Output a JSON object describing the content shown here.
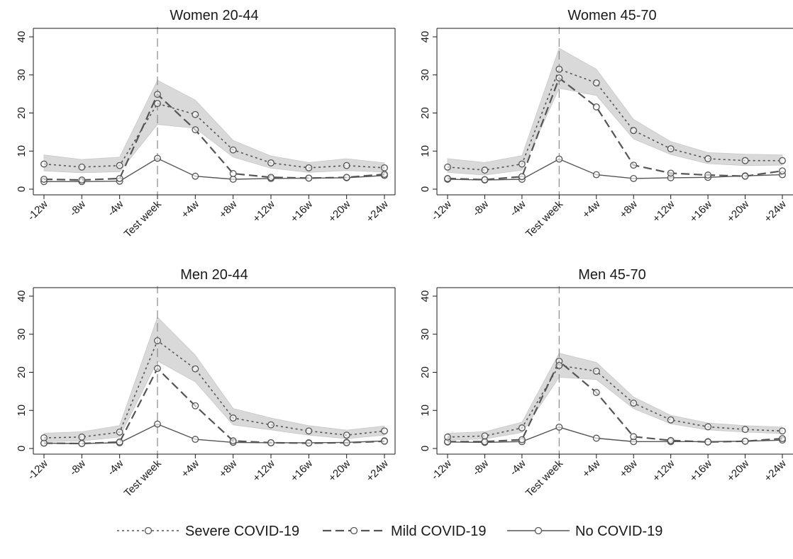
{
  "chart_data": [
    {
      "type": "line",
      "title": "Women 20-44",
      "categories": [
        "-12w",
        "-8w",
        "-4w",
        "Test week",
        "+4w",
        "+8w",
        "+12w",
        "+16w",
        "+20w",
        "+24w"
      ],
      "ylim": [
        0,
        40
      ],
      "yticks": [
        0,
        10,
        20,
        30,
        40
      ],
      "series": [
        {
          "name": "Severe COVID-19",
          "values": [
            6.6,
            5.8,
            6.2,
            22.5,
            19.6,
            10.3,
            6.9,
            5.6,
            6.2,
            5.6
          ],
          "ci_low": [
            4.8,
            4.3,
            4.6,
            17.0,
            16.0,
            8.4,
            5.5,
            4.4,
            4.9,
            4.5
          ],
          "ci_high": [
            9.0,
            7.8,
            8.4,
            28.6,
            23.4,
            12.8,
            8.7,
            7.0,
            8.0,
            6.9
          ]
        },
        {
          "name": "Mild COVID-19",
          "values": [
            2.6,
            2.4,
            2.8,
            24.9,
            15.6,
            4.1,
            3.1,
            2.9,
            3.1,
            3.9
          ]
        },
        {
          "name": "No COVID-19",
          "values": [
            2.0,
            2.0,
            2.1,
            8.1,
            3.4,
            2.6,
            2.8,
            2.9,
            3.0,
            3.6
          ]
        }
      ]
    },
    {
      "type": "line",
      "title": "Women 45-70",
      "categories": [
        "-12w",
        "-8w",
        "-4w",
        "Test week",
        "+4w",
        "+8w",
        "+12w",
        "+16w",
        "+20w",
        "+24w"
      ],
      "ylim": [
        0,
        40
      ],
      "yticks": [
        0,
        10,
        20,
        30,
        40
      ],
      "series": [
        {
          "name": "Severe COVID-19",
          "values": [
            5.8,
            5.0,
            6.6,
            31.5,
            27.9,
            15.4,
            10.6,
            8.0,
            7.5,
            7.5
          ],
          "ci_low": [
            4.4,
            3.7,
            5.0,
            26.5,
            24.6,
            13.2,
            9.1,
            6.7,
            6.2,
            6.3
          ],
          "ci_high": [
            8.0,
            7.0,
            8.8,
            37.0,
            31.5,
            18.3,
            12.5,
            9.6,
            9.2,
            9.0
          ]
        },
        {
          "name": "Mild COVID-19",
          "values": [
            2.8,
            2.5,
            3.3,
            29.2,
            21.6,
            6.3,
            4.2,
            3.7,
            3.4,
            4.8
          ]
        },
        {
          "name": "No COVID-19",
          "values": [
            2.6,
            2.4,
            2.6,
            7.9,
            3.8,
            2.8,
            3.0,
            3.1,
            3.5,
            3.8
          ]
        }
      ]
    },
    {
      "type": "line",
      "title": "Men 20-44",
      "categories": [
        "-12w",
        "-8w",
        "-4w",
        "Test week",
        "+4w",
        "+8w",
        "+12w",
        "+16w",
        "+20w",
        "+24w"
      ],
      "ylim": [
        0,
        40
      ],
      "yticks": [
        0,
        10,
        20,
        30,
        40
      ],
      "series": [
        {
          "name": "Severe COVID-19",
          "values": [
            2.8,
            3.0,
            4.3,
            28.3,
            20.9,
            8.0,
            6.2,
            4.6,
            3.5,
            4.6
          ],
          "ci_low": [
            1.8,
            2.0,
            3.0,
            23.0,
            17.5,
            6.2,
            4.9,
            3.5,
            2.6,
            3.5
          ],
          "ci_high": [
            4.0,
            4.4,
            6.0,
            34.5,
            24.5,
            10.5,
            8.0,
            6.0,
            4.8,
            5.9
          ]
        },
        {
          "name": "Mild COVID-19",
          "values": [
            1.4,
            1.3,
            1.7,
            21.0,
            11.2,
            2.0,
            1.5,
            1.4,
            1.5,
            1.9
          ]
        },
        {
          "name": "No COVID-19",
          "values": [
            1.4,
            1.3,
            1.5,
            6.4,
            2.4,
            1.6,
            1.5,
            1.5,
            1.6,
            2.0
          ]
        }
      ]
    },
    {
      "type": "line",
      "title": "Men 45-70",
      "categories": [
        "-12w",
        "-8w",
        "-4w",
        "Test week",
        "+4w",
        "+8w",
        "+12w",
        "+16w",
        "+20w",
        "+24w"
      ],
      "ylim": [
        0,
        40
      ],
      "yticks": [
        0,
        10,
        20,
        30,
        40
      ],
      "series": [
        {
          "name": "Severe COVID-19",
          "values": [
            3.0,
            3.3,
            5.4,
            21.8,
            20.3,
            11.9,
            7.5,
            5.7,
            5.0,
            4.6
          ],
          "ci_low": [
            2.2,
            2.5,
            4.2,
            18.7,
            18.1,
            10.5,
            6.5,
            4.9,
            4.3,
            3.9
          ],
          "ci_high": [
            4.0,
            4.4,
            6.9,
            25.0,
            22.6,
            13.5,
            8.7,
            6.7,
            6.0,
            5.6
          ]
        },
        {
          "name": "Mild COVID-19",
          "values": [
            1.8,
            1.8,
            2.3,
            22.9,
            14.7,
            3.1,
            2.1,
            1.7,
            1.9,
            2.6
          ]
        },
        {
          "name": "No COVID-19",
          "values": [
            1.7,
            1.6,
            1.8,
            5.6,
            2.7,
            1.8,
            1.8,
            1.8,
            1.9,
            2.2
          ]
        }
      ]
    }
  ],
  "legend": {
    "position": "bottom-center",
    "items": [
      {
        "label": "Severe COVID-19",
        "style": "dotted"
      },
      {
        "label": "Mild COVID-19",
        "style": "dashed"
      },
      {
        "label": "No COVID-19",
        "style": "solid"
      }
    ]
  },
  "colors": {
    "line": "#555555",
    "band": "#d9d9d9",
    "axis": "#1a1a1a",
    "refline": "#8a8a8a"
  }
}
